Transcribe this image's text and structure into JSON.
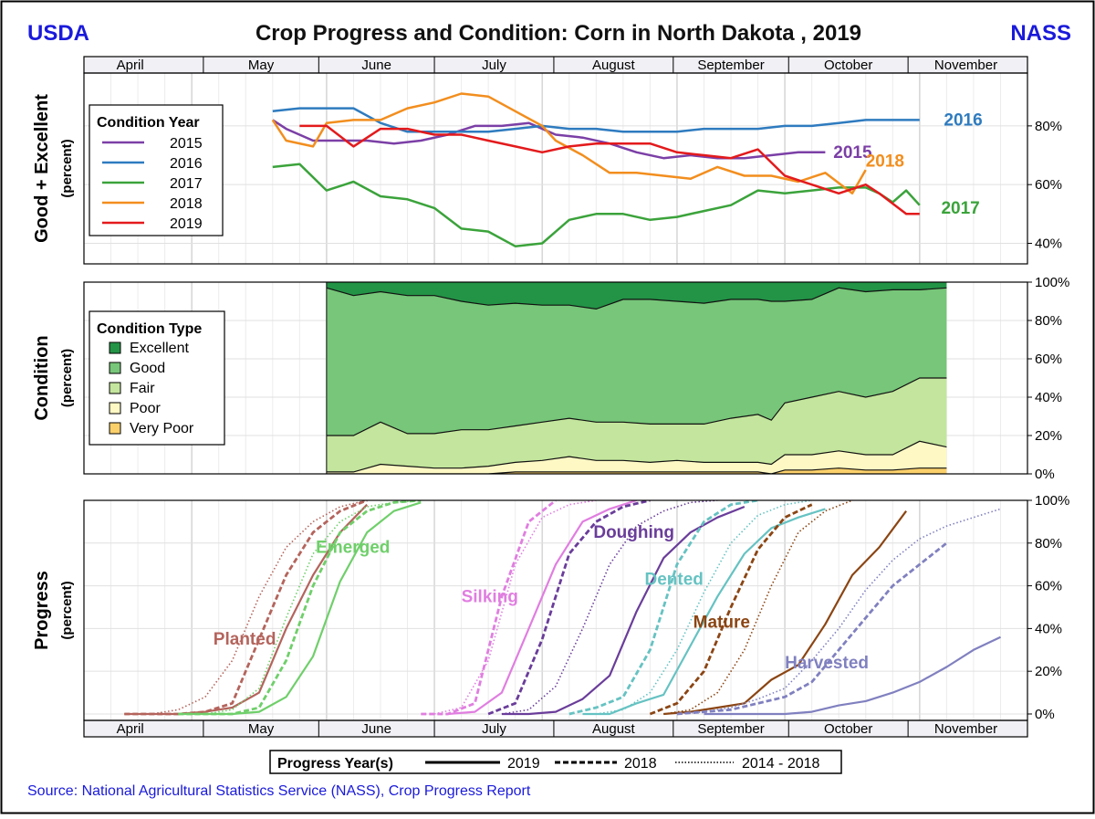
{
  "header": {
    "left_logo": "USDA",
    "right_logo": "NASS",
    "title": "Crop Progress and Condition: Corn in North Dakota , 2019"
  },
  "months": [
    "April",
    "May",
    "June",
    "July",
    "August",
    "September",
    "October",
    "November"
  ],
  "source": "Source: National Agricultural Statistics Service (NASS), Crop Progress Report",
  "colors": {
    "brand": "#1a1adb",
    "y2015": "#7b3fa6",
    "y2016": "#2e7bbf",
    "y2017": "#3ba33b",
    "y2018": "#f28e1e",
    "y2019": "#e31a1c",
    "excellent": "#239346",
    "good": "#77c679",
    "fair": "#c3e59d",
    "poor": "#fdf8c4",
    "very_poor": "#fbd06b",
    "planted": "#b4645c",
    "emerged": "#6fcf6a",
    "silking": "#e07ee0",
    "doughing": "#6a3d9a",
    "dented": "#66c2c2",
    "mature": "#8b4513",
    "harvested": "#8080c0"
  },
  "chart_data": [
    {
      "type": "line",
      "panel": "condition_year",
      "ylabel": "Good + Excellent",
      "ylabel_sub": "(percent)",
      "ylim": [
        33,
        98
      ],
      "yticks": [
        "40%",
        "60%",
        "80%"
      ],
      "x_unit": "week of season (0 = April 1)",
      "legend_title": "Condition Year",
      "legend": [
        "2015",
        "2016",
        "2017",
        "2018",
        "2019"
      ],
      "series": [
        {
          "name": "2015",
          "label": "2015",
          "x": [
            7.0,
            7.5,
            8.5,
            9.5,
            10.5,
            11.5,
            12.5,
            13.5,
            14.5,
            15.5,
            16.5,
            17.5,
            18.5,
            19.5,
            20.5,
            21.5,
            22.5,
            23.5,
            24.5,
            25.5,
            26.5,
            27.5
          ],
          "y": [
            82,
            79,
            75,
            75,
            75,
            74,
            75,
            77,
            80,
            80,
            81,
            77,
            76,
            74,
            71,
            69,
            70,
            69,
            69,
            70,
            71,
            71
          ]
        },
        {
          "name": "2016",
          "label": "2016",
          "x": [
            7.0,
            8.0,
            9.0,
            10.0,
            11.0,
            12.0,
            13.0,
            14.0,
            15.0,
            16.0,
            17.0,
            18.0,
            19.0,
            20.0,
            21.0,
            22.0,
            23.0,
            24.0,
            25.0,
            26.0,
            27.0,
            28.0,
            29.0,
            30.0,
            31.0
          ],
          "y": [
            85,
            86,
            86,
            86,
            81,
            78,
            78,
            78,
            78,
            79,
            80,
            79,
            79,
            78,
            78,
            78,
            79,
            79,
            79,
            80,
            80,
            81,
            82,
            82,
            82
          ]
        },
        {
          "name": "2017",
          "label": "2017",
          "x": [
            7.0,
            8.0,
            9.0,
            10.0,
            11.0,
            12.0,
            13.0,
            14.0,
            15.0,
            16.0,
            17.0,
            18.0,
            19.0,
            20.0,
            21.0,
            22.0,
            23.0,
            24.0,
            25.0,
            26.0,
            27.0,
            28.0,
            29.0,
            29.5,
            30.0,
            30.5,
            31.0
          ],
          "y": [
            66,
            67,
            58,
            61,
            56,
            55,
            52,
            45,
            44,
            39,
            40,
            48,
            50,
            50,
            48,
            49,
            51,
            53,
            58,
            57,
            58,
            59,
            59,
            57,
            54,
            58,
            53
          ]
        },
        {
          "name": "2018",
          "label": "2018",
          "x": [
            7.0,
            7.5,
            8.5,
            9.0,
            10.0,
            11.0,
            12.0,
            13.0,
            14.0,
            15.0,
            16.0,
            17.0,
            17.5,
            18.5,
            19.5,
            20.5,
            21.5,
            22.5,
            23.5,
            24.5,
            25.5,
            26.5,
            27.5,
            28.5,
            29.0
          ],
          "y": [
            82,
            75,
            73,
            81,
            82,
            82,
            86,
            88,
            91,
            90,
            85,
            80,
            75,
            70,
            64,
            64,
            63,
            62,
            66,
            63,
            63,
            61,
            64,
            57,
            65
          ]
        },
        {
          "name": "2019",
          "label": "2019",
          "x": [
            8.0,
            9.0,
            10.0,
            11.0,
            12.0,
            13.0,
            14.0,
            15.0,
            16.0,
            17.0,
            18.0,
            19.0,
            20.0,
            21.0,
            22.0,
            23.0,
            24.0,
            25.0,
            26.0,
            27.0,
            28.0,
            29.0,
            29.5,
            30.5,
            31.0
          ],
          "y": [
            80,
            80,
            73,
            79,
            79,
            77,
            77,
            75,
            73,
            71,
            73,
            74,
            74,
            74,
            71,
            70,
            69,
            72,
            63,
            60,
            57,
            60,
            57,
            50,
            50
          ]
        }
      ]
    },
    {
      "type": "area",
      "panel": "condition_type",
      "stacked": true,
      "ylabel": "Condition",
      "ylabel_sub": "(percent)",
      "ylim": [
        0,
        100
      ],
      "yticks": [
        "0%",
        "20%",
        "40%",
        "60%",
        "80%",
        "100%"
      ],
      "x_unit": "week of season (0 = April 1)",
      "legend_title": "Condition Type",
      "legend": [
        "Excellent",
        "Good",
        "Fair",
        "Poor",
        "Very Poor"
      ],
      "x": [
        9.0,
        10.0,
        11.0,
        12.0,
        13.0,
        14.0,
        15.0,
        16.0,
        17.0,
        18.0,
        19.0,
        20.0,
        21.0,
        22.0,
        23.0,
        24.0,
        25.0,
        25.5,
        26.0,
        27.0,
        28.0,
        29.0,
        30.0,
        31.0,
        32.0
      ],
      "cumulative_boundaries": {
        "very_poor_top": [
          0,
          0,
          0,
          0,
          0,
          0,
          0,
          1,
          1,
          1,
          1,
          1,
          1,
          1,
          1,
          1,
          1,
          0,
          2,
          2,
          3,
          2,
          2,
          3,
          3
        ],
        "poor_top": [
          1,
          1,
          5,
          4,
          3,
          3,
          4,
          6,
          7,
          9,
          7,
          7,
          6,
          7,
          6,
          6,
          6,
          5,
          10,
          10,
          12,
          10,
          10,
          17,
          14
        ],
        "fair_top": [
          20,
          20,
          27,
          21,
          21,
          23,
          23,
          25,
          27,
          29,
          27,
          27,
          26,
          26,
          26,
          29,
          31,
          28,
          37,
          40,
          43,
          40,
          43,
          50,
          50
        ],
        "good_top": [
          97,
          93,
          95,
          93,
          93,
          90,
          88,
          89,
          88,
          88,
          86,
          91,
          91,
          90,
          89,
          91,
          91,
          90,
          90,
          91,
          97,
          95,
          96,
          96,
          97
        ],
        "excellent_top": [
          100,
          100,
          100,
          100,
          100,
          100,
          100,
          100,
          100,
          100,
          100,
          100,
          100,
          100,
          100,
          100,
          100,
          100,
          100,
          100,
          100,
          100,
          100,
          100,
          100
        ]
      }
    },
    {
      "type": "line",
      "panel": "progress",
      "ylabel": "Progress",
      "ylabel_sub": "(percent)",
      "ylim": [
        -3,
        100
      ],
      "yticks": [
        "0%",
        "20%",
        "40%",
        "60%",
        "80%",
        "100%"
      ],
      "x_unit": "week of season (0 = April 1)",
      "legend_title": "Progress Year(s)",
      "legend": [
        "2019",
        "2018",
        "2014 - 2018"
      ],
      "series": [
        {
          "name": "Planted",
          "label": "Planted",
          "color_key": "planted",
          "year": "2019",
          "x": [
            1.5,
            2.5,
            3.5,
            4.5,
            5.5,
            6.5,
            7.5,
            8.5,
            9.5,
            10.5
          ],
          "y": [
            0,
            0,
            0,
            1,
            3,
            10,
            40,
            65,
            85,
            98
          ]
        },
        {
          "name": "Planted",
          "year": "2018",
          "x": [
            1.5,
            2.5,
            3.5,
            4.5,
            5.5,
            6.5,
            7.5,
            8.5,
            9.5,
            10.5
          ],
          "y": [
            0,
            0,
            0,
            1,
            5,
            35,
            65,
            85,
            95,
            100
          ]
        },
        {
          "name": "Planted",
          "year": "2014 - 2018",
          "x": [
            1.5,
            2.5,
            3.5,
            4.5,
            5.5,
            6.5,
            7.5,
            8.5,
            9.5,
            10.5
          ],
          "y": [
            0,
            0,
            2,
            8,
            25,
            55,
            78,
            90,
            97,
            100
          ]
        },
        {
          "name": "Emerged",
          "label": "Emerged",
          "color_key": "emerged",
          "year": "2019",
          "x": [
            3.5,
            4.5,
            5.5,
            6.5,
            7.5,
            8.5,
            9.5,
            10.5,
            11.5,
            12.5
          ],
          "y": [
            0,
            0,
            0,
            1,
            8,
            27,
            62,
            85,
            95,
            99
          ]
        },
        {
          "name": "Emerged",
          "year": "2018",
          "x": [
            3.5,
            4.5,
            5.5,
            6.5,
            7.5,
            8.5,
            9.5,
            10.5,
            11.5,
            12.5
          ],
          "y": [
            0,
            0,
            0,
            3,
            25,
            60,
            85,
            95,
            99,
            100
          ]
        },
        {
          "name": "Emerged",
          "year": "2014 - 2018",
          "x": [
            3.5,
            4.5,
            5.5,
            6.5,
            7.5,
            8.5,
            9.5,
            10.5,
            11.5,
            12.5
          ],
          "y": [
            0,
            0,
            2,
            12,
            45,
            75,
            90,
            97,
            99,
            100
          ]
        },
        {
          "name": "Silking",
          "label": "Silking",
          "color_key": "silking",
          "year": "2019",
          "x": [
            13.5,
            14.5,
            15.5,
            16.5,
            17.5,
            18.5,
            19.5,
            20.5
          ],
          "y": [
            0,
            1,
            10,
            40,
            70,
            90,
            96,
            100
          ]
        },
        {
          "name": "Silking",
          "year": "2018",
          "x": [
            12.5,
            13.5,
            14.5,
            15.5,
            16.5,
            17.5
          ],
          "y": [
            0,
            0,
            5,
            55,
            90,
            100
          ]
        },
        {
          "name": "Silking",
          "year": "2014 - 2018",
          "x": [
            13.0,
            14.0,
            15.0,
            16.0,
            17.0,
            18.0,
            19.0
          ],
          "y": [
            0,
            3,
            25,
            70,
            92,
            98,
            100
          ]
        },
        {
          "name": "Doughing",
          "label": "Doughing",
          "color_key": "doughing",
          "year": "2019",
          "x": [
            15.5,
            16.5,
            17.5,
            18.5,
            19.5,
            20.5,
            21.5,
            22.5,
            23.5,
            24.5
          ],
          "y": [
            0,
            0,
            1,
            7,
            18,
            48,
            73,
            85,
            92,
            97
          ]
        },
        {
          "name": "Doughing",
          "year": "2018",
          "x": [
            15.0,
            16.0,
            17.0,
            18.0,
            19.0,
            20.0,
            21.0
          ],
          "y": [
            0,
            5,
            35,
            75,
            90,
            97,
            100
          ]
        },
        {
          "name": "Doughing",
          "year": "2014 - 2018",
          "x": [
            15.5,
            16.5,
            17.5,
            18.5,
            19.5,
            20.5,
            21.5,
            22.5,
            23.5
          ],
          "y": [
            0,
            2,
            13,
            40,
            70,
            88,
            95,
            99,
            100
          ]
        },
        {
          "name": "Dented",
          "label": "Dented",
          "color_key": "dented",
          "year": "2019",
          "x": [
            18.5,
            19.5,
            20.5,
            21.5,
            22.5,
            23.5,
            24.5,
            25.5,
            26.5,
            27.5
          ],
          "y": [
            0,
            0,
            5,
            9,
            32,
            55,
            75,
            87,
            92,
            96
          ]
        },
        {
          "name": "Dented",
          "year": "2018",
          "x": [
            18.0,
            19.0,
            20.0,
            21.0,
            22.0,
            23.0,
            24.0,
            25.0
          ],
          "y": [
            0,
            3,
            8,
            30,
            70,
            90,
            98,
            100
          ]
        },
        {
          "name": "Dented",
          "year": "2014 - 2018",
          "x": [
            19.0,
            20.0,
            21.0,
            22.0,
            23.0,
            24.0,
            25.0,
            26.0,
            27.0
          ],
          "y": [
            0,
            2,
            10,
            30,
            57,
            80,
            93,
            98,
            100
          ]
        },
        {
          "name": "Mature",
          "label": "Mature",
          "color_key": "mature",
          "year": "2019",
          "x": [
            21.5,
            22.5,
            23.5,
            24.5,
            25.5,
            26.5,
            27.5,
            28.5,
            29.5,
            30.5
          ],
          "y": [
            0,
            1,
            3,
            5,
            16,
            23,
            42,
            65,
            78,
            95
          ]
        },
        {
          "name": "Mature",
          "year": "2018",
          "x": [
            21.0,
            22.0,
            23.0,
            24.0,
            25.0,
            26.0,
            27.0
          ],
          "y": [
            0,
            5,
            20,
            50,
            77,
            92,
            98
          ]
        },
        {
          "name": "Mature",
          "year": "2014 - 2018",
          "x": [
            21.5,
            22.5,
            23.5,
            24.5,
            25.5,
            26.5,
            27.5,
            28.5
          ],
          "y": [
            0,
            2,
            10,
            30,
            60,
            85,
            95,
            100
          ]
        },
        {
          "name": "Harvested",
          "label": "Harvested",
          "color_key": "harvested",
          "year": "2019",
          "x": [
            23.0,
            24.0,
            25.0,
            26.0,
            27.0,
            28.0,
            29.0,
            30.0,
            31.0,
            32.0,
            33.0,
            34.0
          ],
          "y": [
            0,
            0,
            0,
            0,
            1,
            4,
            6,
            10,
            15,
            22,
            30,
            36
          ]
        },
        {
          "name": "Harvested",
          "year": "2018",
          "x": [
            22.0,
            23.0,
            24.0,
            25.0,
            26.0,
            27.0,
            28.0,
            29.0,
            30.0,
            31.0,
            32.0
          ],
          "y": [
            0,
            1,
            2,
            5,
            8,
            15,
            30,
            45,
            60,
            70,
            80
          ]
        },
        {
          "name": "Harvested",
          "year": "2014 - 2018",
          "x": [
            22.0,
            23.0,
            24.0,
            25.0,
            26.0,
            27.0,
            28.0,
            29.0,
            30.0,
            31.0,
            32.0,
            33.0,
            34.0
          ],
          "y": [
            0,
            1,
            3,
            7,
            12,
            25,
            40,
            58,
            72,
            82,
            88,
            92,
            96
          ]
        }
      ]
    }
  ]
}
